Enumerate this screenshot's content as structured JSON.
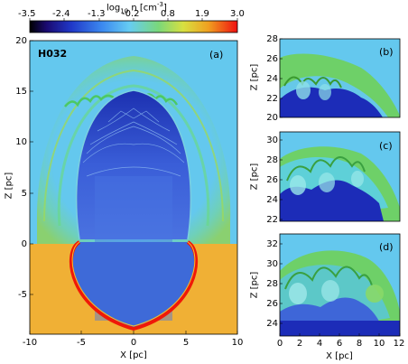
{
  "figure": {
    "colorbar": {
      "label": "log10 n [cm^-3]",
      "label_main": "log",
      "label_sub": "10",
      "label_rest": " n [cm",
      "label_exp": "-3",
      "label_end": "]",
      "ticks": [
        "-3.5",
        "-2.4",
        "-1.3",
        "-0.2",
        "0.8",
        "1.9",
        "3.0"
      ]
    },
    "panel_a": {
      "tag": "(a)",
      "run_label": "H032",
      "xlabel": "X [pc]",
      "ylabel": "Z [pc]",
      "xticks": [
        "-10",
        "-5",
        "0",
        "5",
        "10"
      ],
      "yticks": [
        "20",
        "15",
        "10",
        "5",
        "0",
        "-5"
      ]
    },
    "panel_b": {
      "tag": "(b)",
      "ylabel": "Z [pc]",
      "yticks": [
        "28",
        "26",
        "24",
        "22",
        "20"
      ]
    },
    "panel_c": {
      "tag": "(c)",
      "ylabel": "Z [pc]",
      "yticks": [
        "30",
        "28",
        "26",
        "24",
        "22"
      ]
    },
    "panel_d": {
      "tag": "(d)",
      "ylabel": "Z [pc]",
      "yticks": [
        "32",
        "30",
        "28",
        "26",
        "24"
      ],
      "xlabel": "X [pc]",
      "xticks": [
        "0",
        "2",
        "4",
        "6",
        "8",
        "10",
        "12"
      ]
    },
    "colors": {
      "ambient": "#64c8ee",
      "disk": "#f0b035",
      "shell": "#f01808",
      "bubble": "#2a40bf",
      "dark_cloud": "#1420b8",
      "green_shell": "#6ed068"
    }
  }
}
